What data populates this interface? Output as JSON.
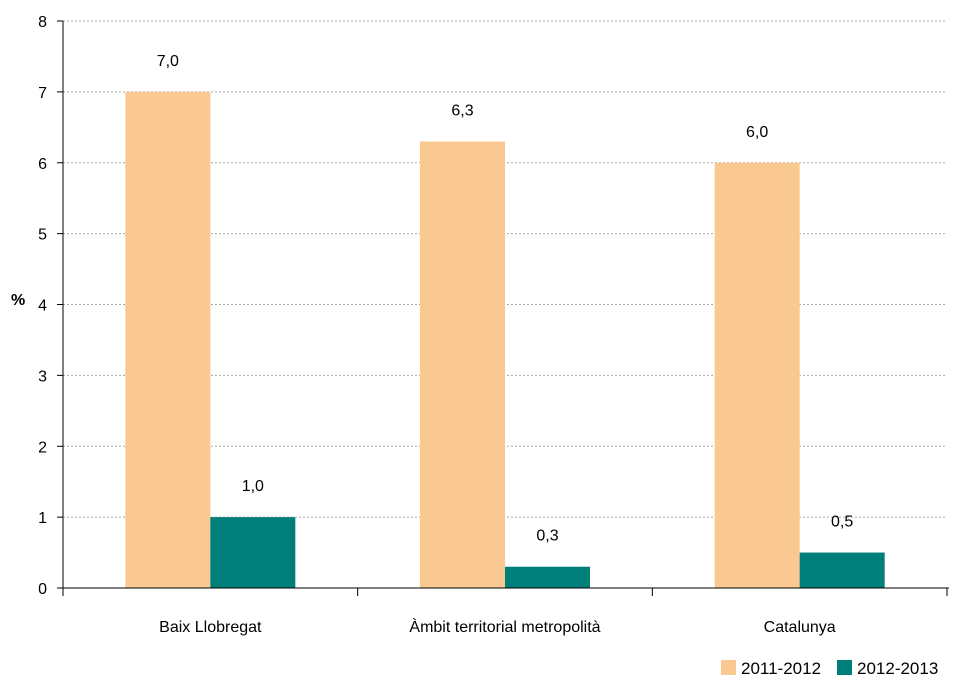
{
  "chart_data": {
    "type": "bar",
    "title": "",
    "xlabel": "",
    "ylabel": "%",
    "ylim": [
      0,
      8
    ],
    "yticks": [
      0,
      1,
      2,
      3,
      4,
      5,
      6,
      7,
      8
    ],
    "grid": true,
    "legend_position": "bottom-right",
    "categories": [
      "Baix Llobregat",
      "Àmbit territorial metropolità",
      "Catalunya"
    ],
    "series": [
      {
        "name": "2011-2012",
        "color": "#FAC891",
        "values": [
          7.0,
          6.3,
          6.0
        ],
        "labels": [
          "7,0",
          "6,3",
          "6,0"
        ]
      },
      {
        "name": "2012-2013",
        "color": "#007E7A",
        "values": [
          1.0,
          0.3,
          0.5
        ],
        "labels": [
          "1,0",
          "0,3",
          "0,5"
        ]
      }
    ]
  }
}
